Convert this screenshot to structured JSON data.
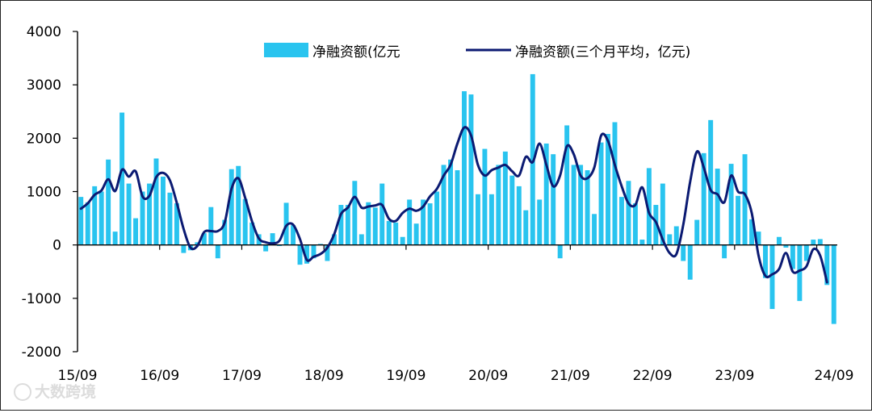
{
  "chart_data": {
    "type": "bar",
    "title": "",
    "xlabel": "",
    "ylabel": "",
    "ylim": [
      -2000,
      4000
    ],
    "yticks": [
      4000,
      3000,
      2000,
      1000,
      0,
      -1000,
      -2000
    ],
    "ytick_labels": [
      "4000",
      "3000",
      "2000",
      "1000",
      "0",
      "-1000",
      "-2000"
    ],
    "xtick_labels": [
      "15/09",
      "16/09",
      "17/09",
      "18/09",
      "19/09",
      "20/09",
      "21/09",
      "22/09",
      "23/09",
      "24/09"
    ],
    "bar_color": "#29c4ef",
    "line_color": "#0b1a72",
    "legend_placement": "top-center",
    "series": [
      {
        "name": "净融资额(亿元",
        "kind": "bar",
        "values": [
          900,
          800,
          1100,
          1000,
          1600,
          250,
          2480,
          1150,
          500,
          1000,
          1150,
          1620,
          1280,
          980,
          780,
          -150,
          -100,
          50,
          220,
          710,
          -250,
          470,
          1420,
          1480,
          860,
          420,
          200,
          -120,
          220,
          -20,
          790,
          370,
          -370,
          -350,
          -250,
          20,
          -300,
          200,
          750,
          750,
          1200,
          200,
          800,
          700,
          1150,
          450,
          420,
          150,
          850,
          400,
          850,
          780,
          1000,
          1500,
          1600,
          1400,
          2880,
          2820,
          950,
          1800,
          950,
          1500,
          1750,
          1300,
          1100,
          650,
          3200,
          850,
          1900,
          1700,
          -250,
          2240,
          1500,
          1500,
          1400,
          580,
          1920,
          2080,
          2300,
          900,
          1200,
          780,
          100,
          1440,
          750,
          1150,
          200,
          350,
          -300,
          -650,
          470,
          1720,
          2340,
          1430,
          -250,
          1520,
          920,
          1700,
          480,
          250,
          -620,
          -1200,
          150,
          -50,
          -450,
          -1050,
          -300,
          100,
          110,
          -750,
          -1480
        ]
      },
      {
        "name": "净融资额(三个月平均，亿元)",
        "kind": "line",
        "values": [
          680,
          780,
          940,
          1020,
          1230,
          1010,
          1410,
          1280,
          1380,
          910,
          920,
          1270,
          1350,
          1210,
          790,
          300,
          -50,
          -20,
          240,
          260,
          260,
          420,
          1050,
          1250,
          880,
          440,
          120,
          50,
          30,
          80,
          360,
          380,
          110,
          -280,
          -220,
          -170,
          -50,
          200,
          580,
          700,
          900,
          700,
          720,
          740,
          750,
          490,
          450,
          600,
          680,
          640,
          720,
          910,
          1050,
          1300,
          1500,
          1900,
          2200,
          2050,
          1500,
          1300,
          1400,
          1450,
          1500,
          1380,
          1300,
          1650,
          1550,
          1900,
          1500,
          1100,
          1300,
          1850,
          1700,
          1300,
          1250,
          1450,
          2050,
          1950,
          1500,
          1100,
          780,
          750,
          1080,
          600,
          430,
          100,
          -150,
          -170,
          380,
          1180,
          1750,
          1450,
          1030,
          950,
          800,
          1300,
          1000,
          950,
          600,
          -200,
          -580,
          -550,
          -450,
          -150,
          -500,
          -480,
          -400,
          -80,
          -200,
          -700
        ]
      }
    ]
  },
  "watermark": "大数跨境"
}
